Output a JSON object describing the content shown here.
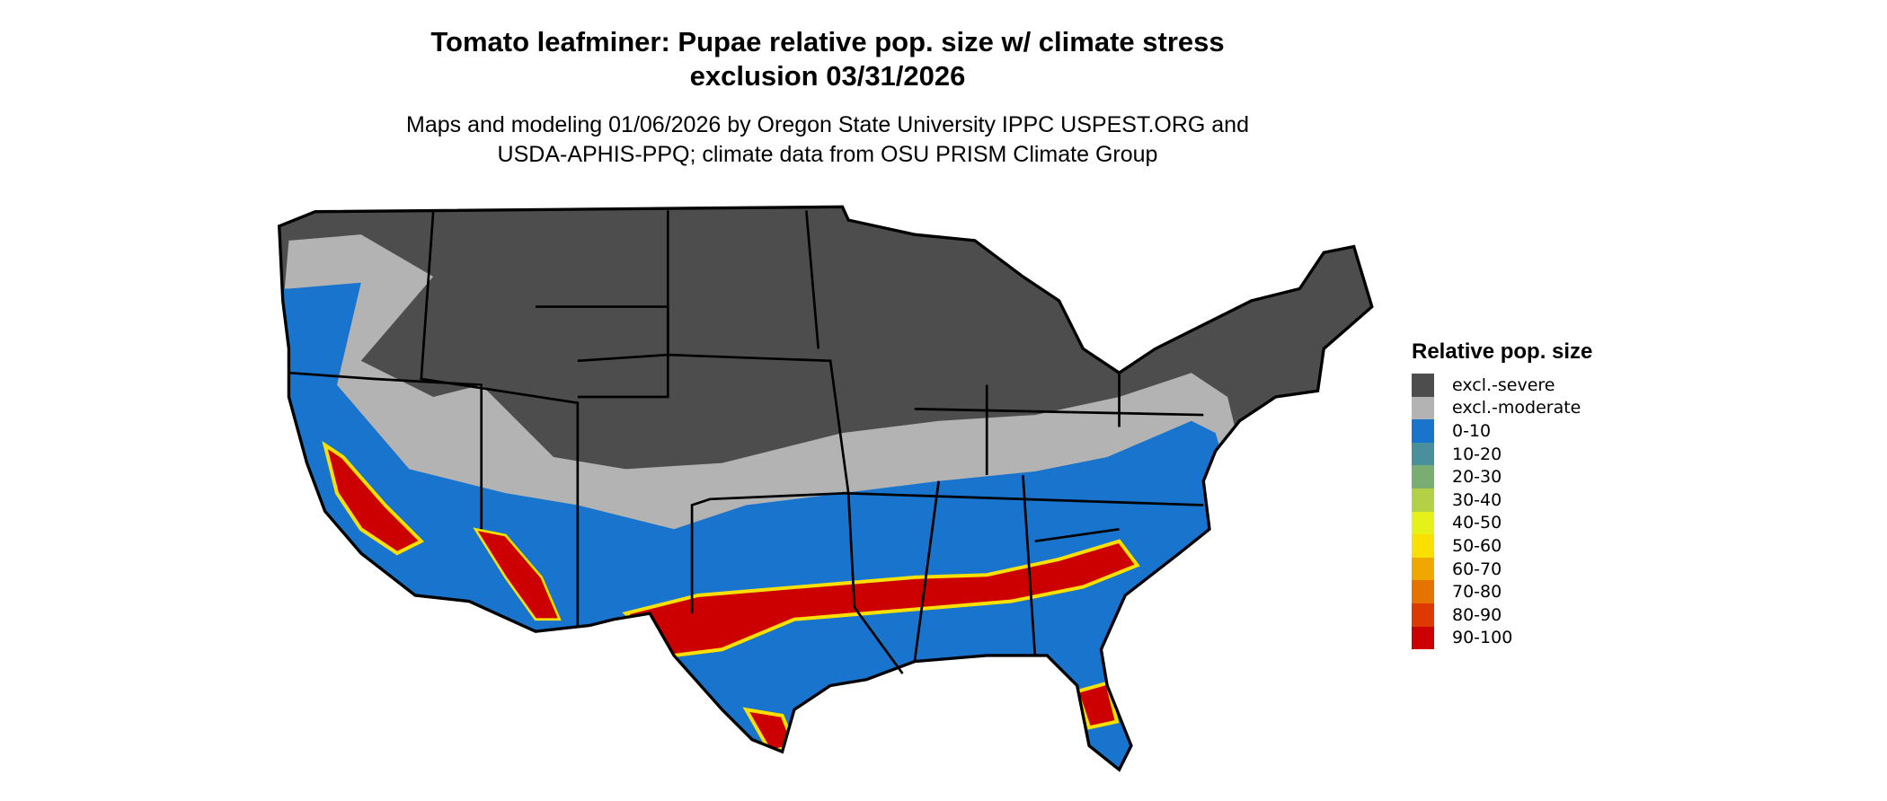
{
  "title_line1": "Tomato leafminer: Pupae relative pop. size w/ climate stress",
  "title_line2": "exclusion 03/31/2026",
  "subtitle_line1": "Maps and modeling 01/06/2026 by Oregon State University IPPC USPEST.ORG and",
  "subtitle_line2": "USDA-APHIS-PPQ; climate data from OSU PRISM Climate Group",
  "legend": {
    "title": "Relative pop. size",
    "items": [
      {
        "label": "excl.-severe",
        "color": "#4d4d4d"
      },
      {
        "label": "excl.-moderate",
        "color": "#b3b3b3"
      },
      {
        "label": "0-10",
        "color": "#1874cd"
      },
      {
        "label": "10-20",
        "color": "#4a8f9c"
      },
      {
        "label": "20-30",
        "color": "#7aad72"
      },
      {
        "label": "30-40",
        "color": "#b2d147"
      },
      {
        "label": "40-50",
        "color": "#e6f019"
      },
      {
        "label": "50-60",
        "color": "#f9e000"
      },
      {
        "label": "60-70",
        "color": "#f0a800"
      },
      {
        "label": "70-80",
        "color": "#e57300"
      },
      {
        "label": "80-90",
        "color": "#dc3a00"
      },
      {
        "label": "90-100",
        "color": "#cc0000"
      }
    ]
  }
}
